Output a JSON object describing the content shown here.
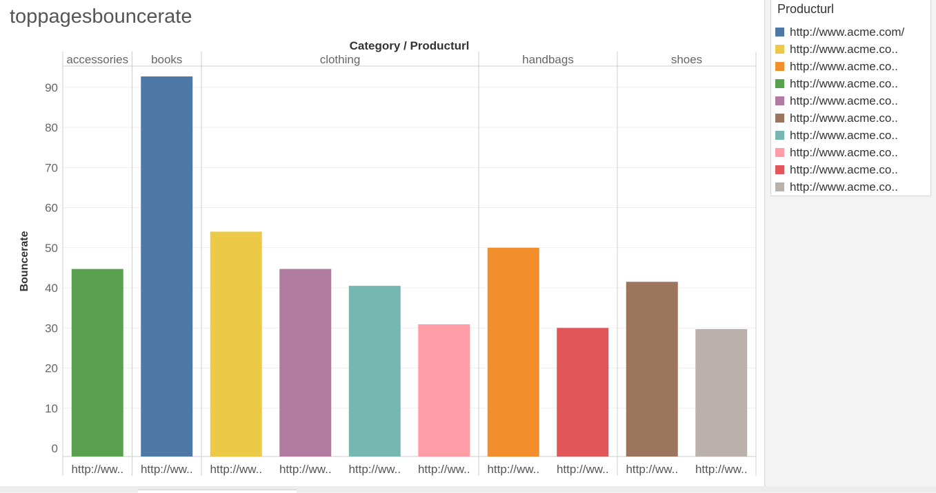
{
  "title": "toppagesbouncerate",
  "legend": {
    "title": "Producturl",
    "items": [
      {
        "label": "http://www.acme.com/",
        "color": "#4e79a7"
      },
      {
        "label": "http://www.acme.co..",
        "color": "#edc948"
      },
      {
        "label": "http://www.acme.co..",
        "color": "#f28e2b"
      },
      {
        "label": "http://www.acme.co..",
        "color": "#59a14f"
      },
      {
        "label": "http://www.acme.co..",
        "color": "#b07aa1"
      },
      {
        "label": "http://www.acme.co..",
        "color": "#9c755f"
      },
      {
        "label": "http://www.acme.co..",
        "color": "#76b7b2"
      },
      {
        "label": "http://www.acme.co..",
        "color": "#ff9da7"
      },
      {
        "label": "http://www.acme.co..",
        "color": "#e15759"
      },
      {
        "label": "http://www.acme.co..",
        "color": "#bab0ac"
      }
    ]
  },
  "chart_data": {
    "type": "bar",
    "title": "toppagesbouncerate",
    "column_header": "Category / Producturl",
    "ylabel": "Bouncerate",
    "ylim": [
      0,
      96
    ],
    "yticks": [
      0,
      10,
      20,
      30,
      40,
      50,
      60,
      70,
      80,
      90
    ],
    "grid": true,
    "legend_position": "right",
    "groups": [
      {
        "name": "accessories",
        "bars": [
          {
            "label": "http://ww..",
            "value": 44.7,
            "color": "#59a14f"
          }
        ]
      },
      {
        "name": "books",
        "bars": [
          {
            "label": "http://ww..",
            "value": 92.7,
            "color": "#4e79a7"
          }
        ]
      },
      {
        "name": "clothing",
        "bars": [
          {
            "label": "http://ww..",
            "value": 54.0,
            "color": "#edc948"
          },
          {
            "label": "http://ww..",
            "value": 44.7,
            "color": "#b07aa1"
          },
          {
            "label": "http://ww..",
            "value": 40.5,
            "color": "#76b7b2"
          },
          {
            "label": "http://ww..",
            "value": 30.9,
            "color": "#ff9da7"
          }
        ]
      },
      {
        "name": "handbags",
        "bars": [
          {
            "label": "http://ww..",
            "value": 50.0,
            "color": "#f28e2b"
          },
          {
            "label": "http://ww..",
            "value": 30.0,
            "color": "#e15759"
          }
        ]
      },
      {
        "name": "shoes",
        "bars": [
          {
            "label": "http://ww..",
            "value": 41.5,
            "color": "#9c755f"
          },
          {
            "label": "http://ww..",
            "value": 29.7,
            "color": "#bab0ac"
          }
        ]
      }
    ]
  }
}
